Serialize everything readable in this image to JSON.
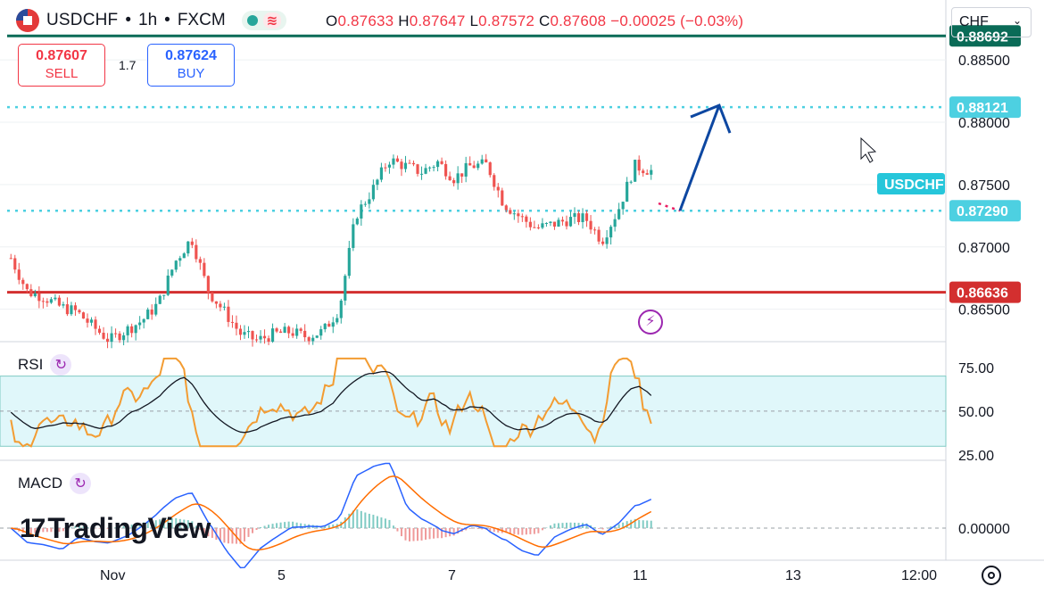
{
  "header": {
    "symbol": "USDCHF",
    "separator1": "•",
    "interval": "1h",
    "separator2": "•",
    "exchange": "FXCM",
    "open_label": "O",
    "open": "0.87633",
    "high_label": "H",
    "high": "0.87647",
    "low_label": "L",
    "low": "0.87572",
    "close_label": "C",
    "close": "0.87608",
    "change": "−0.00025 (−0.03%)"
  },
  "trade": {
    "sell_price": "0.87607",
    "sell_label": "SELL",
    "spread": "1.7",
    "buy_price": "0.87624",
    "buy_label": "BUY"
  },
  "currency_select": "CHF",
  "price_axis": {
    "ticks": [
      "0.88500",
      "0.88000",
      "0.87500",
      "0.87000",
      "0.86500"
    ],
    "tick_values": [
      0.885,
      0.88,
      0.875,
      0.87,
      0.865
    ],
    "labels": [
      {
        "text": "0.88692",
        "value": 0.88692,
        "color": "#0a6b57"
      },
      {
        "text": "0.88121",
        "value": 0.88121,
        "color": "#4dd0e1"
      },
      {
        "text": "USDCHF",
        "value": 0.87608,
        "color": "#26c6da"
      },
      {
        "text": "0.87290",
        "value": 0.8729,
        "color": "#4dd0e1"
      },
      {
        "text": "0.86636",
        "value": 0.86636,
        "color": "#d32f2f"
      }
    ]
  },
  "rsi": {
    "label": "RSI",
    "ticks": [
      "75.00",
      "50.00",
      "25.00"
    ],
    "tick_values": [
      75,
      50,
      25
    ],
    "band": [
      30,
      70
    ]
  },
  "macd": {
    "label": "MACD",
    "ticks": [
      "0.00000"
    ]
  },
  "time_axis": {
    "labels": [
      "Nov",
      "5",
      "7",
      "11",
      "13",
      "12:00"
    ]
  },
  "logo_text": "TradingView",
  "logo_mark": "17",
  "colors": {
    "up": "#26a69a",
    "down": "#ef5350",
    "resistance": "#0a6b57",
    "support": "#d32f2f",
    "level": "#4dd0e1",
    "arrow": "#0d47a1",
    "rsi_line": "#f39c32",
    "rsi_ma": "#131722",
    "macd_line": "#2962ff",
    "signal_line": "#ff6d00"
  },
  "chart_data": {
    "type": "candlestick",
    "symbol": "USDCHF",
    "interval": "1h",
    "ylim": [
      0.8624,
      0.8898
    ],
    "horizontal_levels": [
      0.88692,
      0.88121,
      0.8729,
      0.86636
    ],
    "close_path": [
      0.8691,
      0.8664,
      0.866,
      0.8652,
      0.8648,
      0.8636,
      0.8625,
      0.8633,
      0.8641,
      0.8655,
      0.8688,
      0.8707,
      0.8665,
      0.8648,
      0.863,
      0.8625,
      0.863,
      0.8632,
      0.8628,
      0.8632,
      0.865,
      0.8725,
      0.8745,
      0.877,
      0.8765,
      0.876,
      0.8768,
      0.8755,
      0.8765,
      0.8766,
      0.8735,
      0.8724,
      0.8715,
      0.8718,
      0.8722,
      0.8723,
      0.8705,
      0.873,
      0.8765,
      0.8761
    ],
    "projection": {
      "from": 0.8729,
      "to": 0.88121
    },
    "rsi_range": [
      25,
      75
    ],
    "macd_zero": 0
  }
}
